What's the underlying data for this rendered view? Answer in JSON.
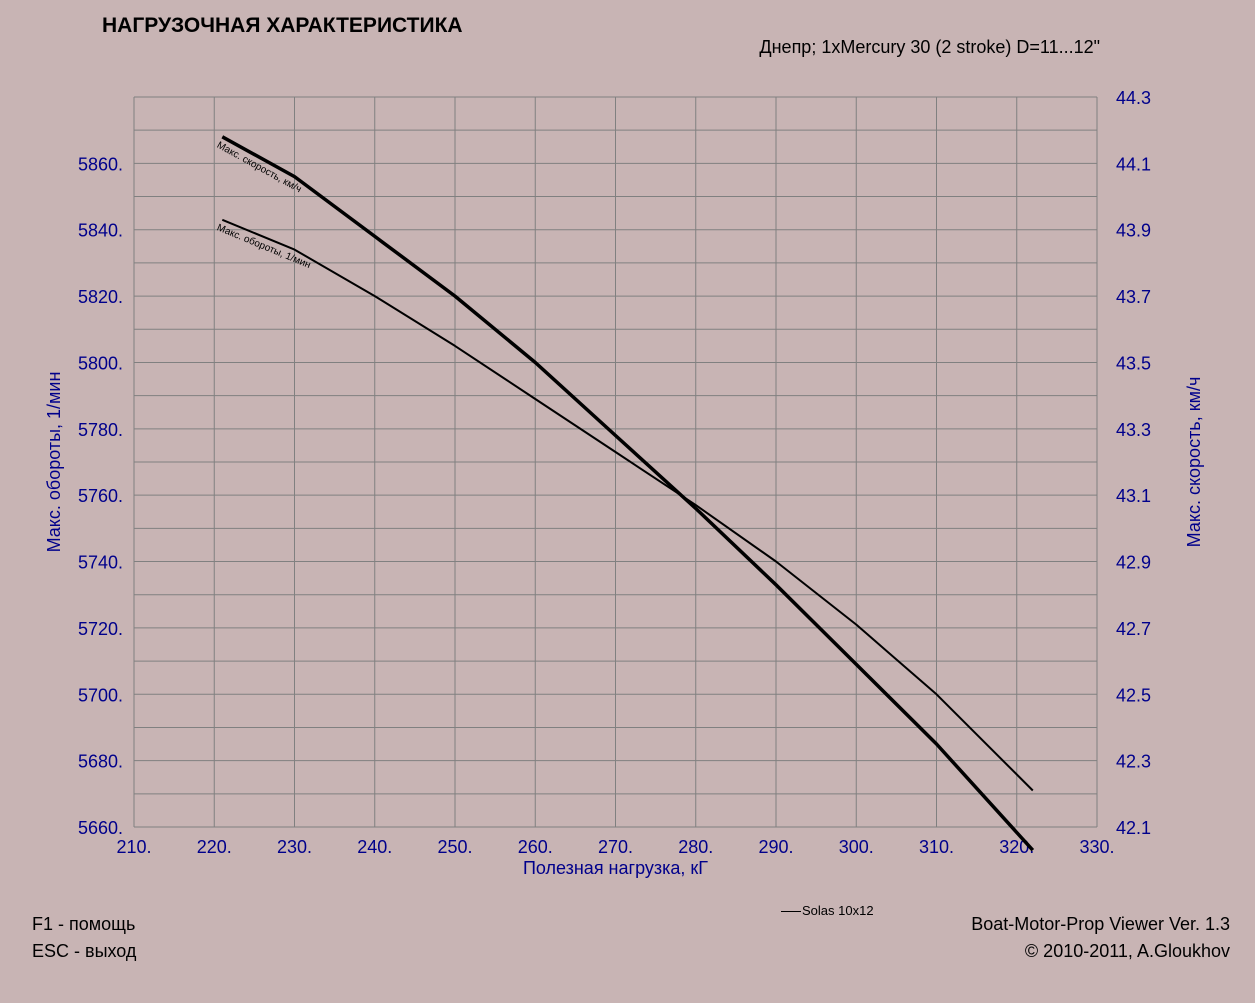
{
  "title": "НАГРУЗОЧНАЯ ХАРАКТЕРИСТИКА",
  "subtitle": "Днепр; 1xMercury 30 (2 stroke) D=11...12\"",
  "footer": {
    "help": "F1 - помощь",
    "exit": "ESC - выход",
    "app_name": "Boat-Motor-Prop Viewer Ver. 1.3",
    "copyright": "© 2010-2011, A.Gloukhov"
  },
  "legend": {
    "label": "Solas 10x12"
  },
  "colors": {
    "background": "#c8b4b4",
    "axis_text": "#00008b",
    "grid": "#808080",
    "series": "#000000"
  },
  "chart_data": {
    "type": "line",
    "xlabel": "Полезная нагрузка, кГ",
    "ylabel": "Макс. обороты, 1/мин",
    "y2label": "Макс. скорость, км/ч",
    "xlim": [
      210,
      330
    ],
    "ylim": [
      5660,
      5880
    ],
    "y2lim": [
      42.1,
      44.3
    ],
    "x_ticks": [
      "210.",
      "220.",
      "230.",
      "240.",
      "250.",
      "260.",
      "270.",
      "280.",
      "290.",
      "300.",
      "310.",
      "320.",
      "330."
    ],
    "y_ticks": [
      "5660.",
      "5680.",
      "5700.",
      "5720.",
      "5740.",
      "5760.",
      "5780.",
      "5800.",
      "5820.",
      "5840.",
      "5860."
    ],
    "y2_ticks": [
      "42.1",
      "42.3",
      "42.5",
      "42.7",
      "42.9",
      "43.1",
      "43.3",
      "43.5",
      "43.7",
      "43.9",
      "44.1",
      "44.3"
    ],
    "grid": true,
    "series": [
      {
        "name": "Макс. скорость, км/ч",
        "axis": "right",
        "stroke_width": 3.5,
        "x": [
          221,
          230,
          240,
          250,
          260,
          270,
          280,
          290,
          300,
          310,
          322
        ],
        "y": [
          44.18,
          44.06,
          43.88,
          43.7,
          43.5,
          43.28,
          43.06,
          42.83,
          42.59,
          42.35,
          42.03
        ]
      },
      {
        "name": "Макс. обороты, 1/мин",
        "axis": "left",
        "stroke_width": 2,
        "x": [
          221,
          230,
          240,
          250,
          260,
          270,
          280,
          290,
          300,
          310,
          322
        ],
        "y": [
          5843,
          5834,
          5820,
          5805,
          5789,
          5773,
          5757,
          5740,
          5721,
          5700,
          5671
        ]
      }
    ]
  }
}
